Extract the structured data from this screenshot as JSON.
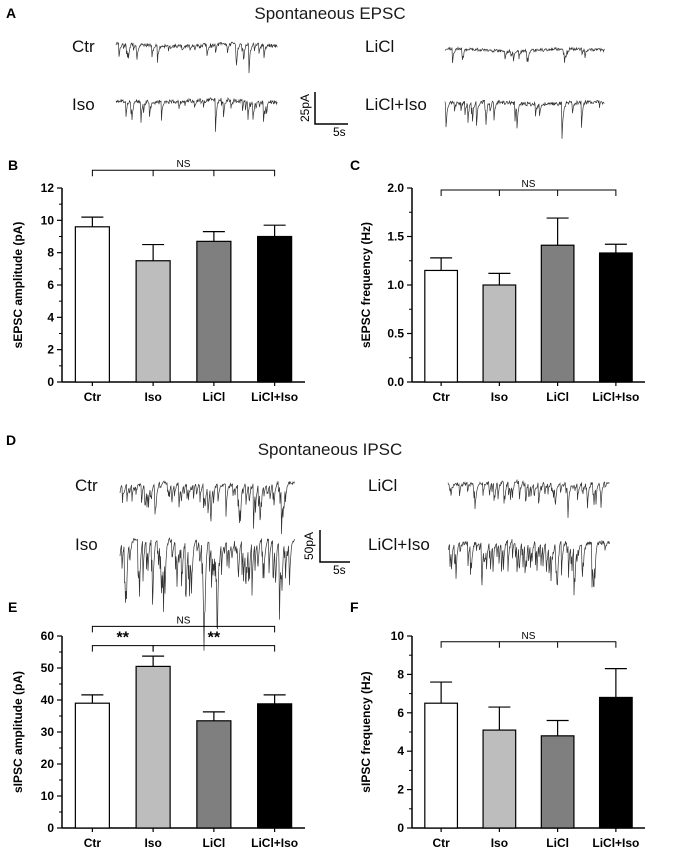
{
  "panels": {
    "A": {
      "letter": "A",
      "title": "Spontaneous EPSC",
      "traces": [
        {
          "label": "Ctr",
          "seed": 11,
          "noise": 2.2,
          "spikes": 30,
          "depth": 16
        },
        {
          "label": "LiCl",
          "seed": 23,
          "noise": 2.0,
          "spikes": 16,
          "depth": 14
        },
        {
          "label": "Iso",
          "seed": 37,
          "noise": 2.6,
          "spikes": 28,
          "depth": 20
        },
        {
          "label": "LiCl+Iso",
          "seed": 53,
          "noise": 2.4,
          "spikes": 22,
          "depth": 26
        }
      ],
      "scalebar": {
        "y_label": "25pA",
        "x_label": "5s"
      }
    },
    "D": {
      "letter": "D",
      "title": "Spontaneous IPSC",
      "traces": [
        {
          "label": "Ctr",
          "seed": 71,
          "noise": 2.4,
          "spikes": 90,
          "depth": 24
        },
        {
          "label": "LiCl",
          "seed": 83,
          "noise": 2.2,
          "spikes": 70,
          "depth": 20
        },
        {
          "label": "Iso",
          "seed": 97,
          "noise": 2.8,
          "spikes": 120,
          "depth": 40
        },
        {
          "label": "LiCl+Iso",
          "seed": 101,
          "noise": 2.5,
          "spikes": 90,
          "depth": 30
        }
      ],
      "scalebar": {
        "y_label": "50pA",
        "x_label": "5s"
      }
    }
  },
  "colors": {
    "bars": [
      "#ffffff",
      "#bdbdbd",
      "#7f7f7f",
      "#000000"
    ],
    "trace": "#333333",
    "axis": "#000000"
  },
  "chart_data": [
    {
      "panel": "B",
      "type": "bar",
      "categories": [
        "Ctr",
        "Iso",
        "LiCl",
        "LiCl+Iso"
      ],
      "values": [
        9.6,
        7.5,
        8.7,
        9.0
      ],
      "errors": [
        0.6,
        1.0,
        0.6,
        0.7
      ],
      "ylabel": "sEPSC amplitude (pA)",
      "ylim": [
        0,
        12
      ],
      "yticks": [
        0,
        2,
        4,
        6,
        8,
        10,
        12
      ],
      "tick_labels": [
        "0",
        "2",
        "4",
        "6",
        "8",
        "10",
        "12"
      ],
      "annotations": [
        {
          "from": 0,
          "to": 3,
          "text": "NS",
          "mid": [
            1,
            2
          ],
          "level": 13.1
        }
      ]
    },
    {
      "panel": "C",
      "type": "bar",
      "categories": [
        "Ctr",
        "Iso",
        "LiCl",
        "LiCl+Iso"
      ],
      "values": [
        1.15,
        1.0,
        1.41,
        1.33
      ],
      "errors": [
        0.13,
        0.12,
        0.28,
        0.09
      ],
      "ylabel": "sEPSC frequency (Hz)",
      "ylim": [
        0,
        2.0
      ],
      "yticks": [
        0,
        0.5,
        1.0,
        1.5,
        2.0
      ],
      "tick_labels": [
        "0.0",
        "0.5",
        "1.0",
        "1.5",
        "2.0"
      ],
      "annotations": [
        {
          "from": 0,
          "to": 3,
          "text": "NS",
          "mid": [
            1,
            2
          ],
          "level": 1.98
        }
      ]
    },
    {
      "panel": "E",
      "type": "bar",
      "categories": [
        "Ctr",
        "Iso",
        "LiCl",
        "LiCl+Iso"
      ],
      "values": [
        39,
        50.5,
        33.5,
        38.8
      ],
      "errors": [
        2.6,
        3.2,
        2.8,
        2.8
      ],
      "ylabel": "sIPSC amplitude (pA)",
      "ylim": [
        0,
        60
      ],
      "yticks": [
        0,
        10,
        20,
        30,
        40,
        50,
        60
      ],
      "tick_labels": [
        "0",
        "10",
        "20",
        "30",
        "40",
        "50",
        "60"
      ],
      "annotations": [
        {
          "from": 0,
          "to": 3,
          "text": "NS",
          "mid": [],
          "level": 63
        },
        {
          "from": 0,
          "to": 1,
          "text": "**",
          "mid": [],
          "level": 57
        },
        {
          "from": 1,
          "to": 3,
          "text": "**",
          "mid": [],
          "level": 57
        }
      ]
    },
    {
      "panel": "F",
      "type": "bar",
      "categories": [
        "Ctr",
        "Iso",
        "LiCl",
        "LiCl+Iso"
      ],
      "values": [
        6.5,
        5.1,
        4.8,
        6.8
      ],
      "errors": [
        1.1,
        1.2,
        0.8,
        1.5
      ],
      "ylabel": "sIPSC frequency (Hz)",
      "ylim": [
        0,
        10
      ],
      "yticks": [
        0,
        2,
        4,
        6,
        8,
        10
      ],
      "tick_labels": [
        "0",
        "2",
        "4",
        "6",
        "8",
        "10"
      ],
      "annotations": [
        {
          "from": 0,
          "to": 3,
          "text": "NS",
          "mid": [
            1,
            2
          ],
          "level": 9.7
        }
      ]
    }
  ]
}
